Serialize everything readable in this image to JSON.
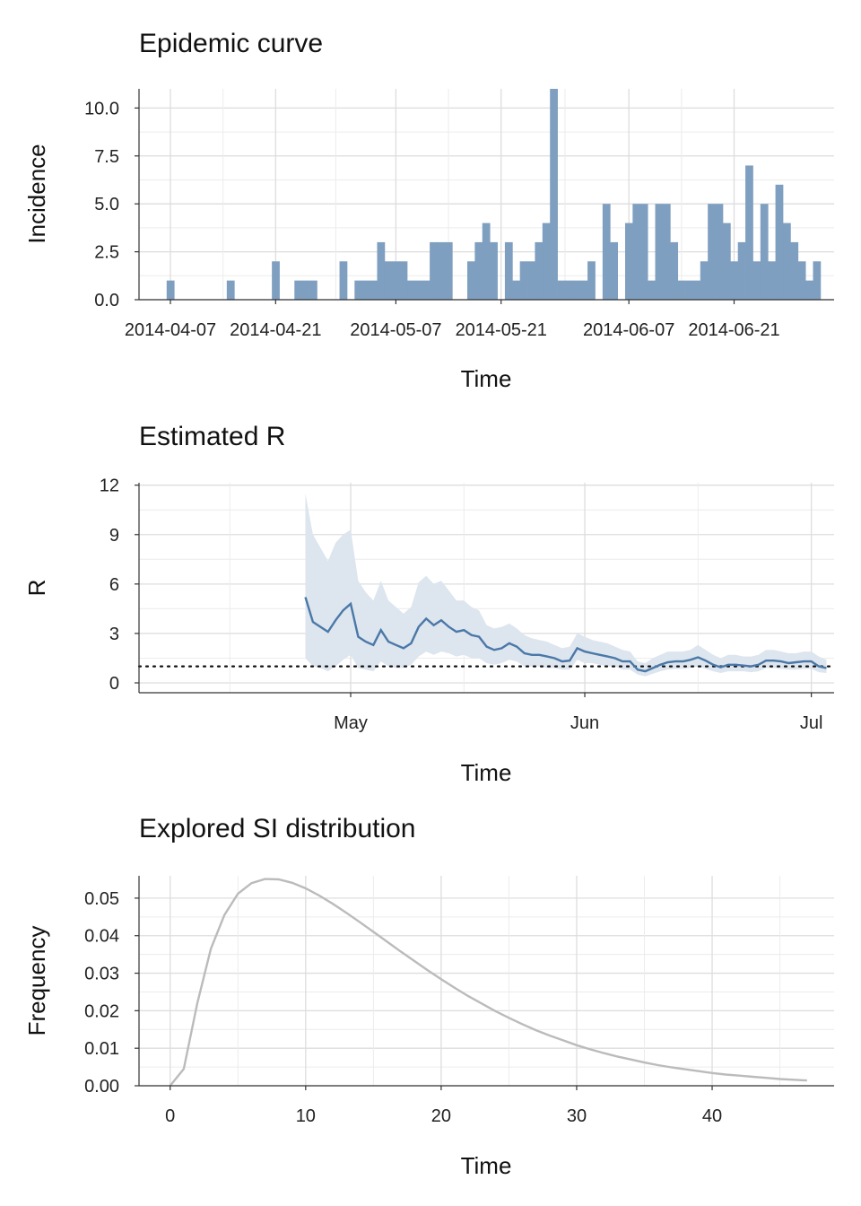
{
  "chart_data": [
    {
      "type": "bar",
      "title": "Epidemic curve",
      "xlabel": "Time",
      "ylabel": "Incidence",
      "ylim": [
        0,
        11
      ],
      "yticks": [
        "0.0",
        "2.5",
        "5.0",
        "7.5",
        "10.0"
      ],
      "xtick_labels": [
        "2014-04-07",
        "2014-04-21",
        "2014-05-07",
        "2014-05-21",
        "2014-06-07",
        "2014-06-21"
      ],
      "bar_color": "#7f9fc0",
      "start_date": "2014-04-07",
      "end_date": "2014-06-30",
      "values": [
        1,
        0,
        0,
        0,
        0,
        0,
        0,
        0,
        1,
        0,
        0,
        0,
        0,
        0,
        2,
        0,
        0,
        1,
        1,
        1,
        0,
        0,
        0,
        2,
        0,
        1,
        1,
        1,
        3,
        2,
        2,
        2,
        1,
        1,
        1,
        3,
        3,
        3,
        0,
        0,
        2,
        3,
        4,
        3,
        0,
        3,
        1,
        2,
        2,
        3,
        4,
        11,
        1,
        1,
        1,
        1,
        2,
        0,
        5,
        3,
        0,
        4,
        5,
        5,
        1,
        5,
        5,
        3,
        1,
        1,
        1,
        2,
        5,
        5,
        4,
        2,
        3,
        7,
        2,
        5,
        2,
        6,
        4,
        3,
        2,
        1,
        2
      ]
    },
    {
      "type": "line",
      "title": "Estimated R",
      "xlabel": "Time",
      "ylabel": "R",
      "ylim": [
        0,
        12
      ],
      "yticks": [
        "0",
        "3",
        "6",
        "9",
        "12"
      ],
      "xtick_labels": [
        "May",
        "Jun",
        "Jul"
      ],
      "line_color": "#4a78a8",
      "band_color": "#dde5ee",
      "reference_line": 1,
      "x": [
        "2014-04-25",
        "2014-04-26",
        "2014-04-27",
        "2014-04-28",
        "2014-04-29",
        "2014-04-30",
        "2014-05-01",
        "2014-05-02",
        "2014-05-03",
        "2014-05-04",
        "2014-05-05",
        "2014-05-06",
        "2014-05-07",
        "2014-05-08",
        "2014-05-09",
        "2014-05-10",
        "2014-05-11",
        "2014-05-12",
        "2014-05-13",
        "2014-05-14",
        "2014-05-15",
        "2014-05-16",
        "2014-05-17",
        "2014-05-18",
        "2014-05-19",
        "2014-05-20",
        "2014-05-21",
        "2014-05-22",
        "2014-05-23",
        "2014-05-24",
        "2014-05-25",
        "2014-05-26",
        "2014-05-27",
        "2014-05-28",
        "2014-05-29",
        "2014-05-30",
        "2014-05-31",
        "2014-06-01",
        "2014-06-02",
        "2014-06-03",
        "2014-06-04",
        "2014-06-05",
        "2014-06-06",
        "2014-06-07",
        "2014-06-08",
        "2014-06-09",
        "2014-06-10",
        "2014-06-11",
        "2014-06-12",
        "2014-06-13",
        "2014-06-14",
        "2014-06-15",
        "2014-06-16",
        "2014-06-17",
        "2014-06-18",
        "2014-06-19",
        "2014-06-20",
        "2014-06-21",
        "2014-06-22",
        "2014-06-23",
        "2014-06-24",
        "2014-06-25",
        "2014-06-26",
        "2014-06-27",
        "2014-06-28",
        "2014-06-29",
        "2014-06-30",
        "2014-07-01",
        "2014-07-02",
        "2014-07-03"
      ],
      "mean": [
        5.2,
        3.7,
        3.4,
        3.1,
        3.8,
        4.4,
        4.8,
        2.8,
        2.5,
        2.3,
        3.2,
        2.5,
        2.3,
        2.1,
        2.4,
        3.4,
        3.9,
        3.5,
        3.8,
        3.4,
        3.1,
        3.2,
        2.9,
        2.8,
        2.2,
        2.0,
        2.1,
        2.4,
        2.2,
        1.8,
        1.7,
        1.7,
        1.6,
        1.5,
        1.3,
        1.35,
        2.1,
        1.9,
        1.8,
        1.7,
        1.6,
        1.5,
        1.3,
        1.3,
        0.8,
        0.7,
        0.9,
        1.1,
        1.25,
        1.3,
        1.3,
        1.4,
        1.55,
        1.35,
        1.1,
        0.95,
        1.1,
        1.1,
        1.05,
        1.0,
        1.1,
        1.35,
        1.35,
        1.3,
        1.2,
        1.25,
        1.3,
        1.3,
        1.0,
        0.9
      ],
      "upper": [
        11.5,
        9.0,
        8.2,
        7.4,
        8.5,
        9.0,
        9.3,
        6.2,
        5.5,
        5.0,
        6.2,
        5.0,
        4.6,
        4.2,
        4.6,
        6.1,
        6.5,
        6.0,
        6.2,
        5.6,
        5.0,
        5.0,
        4.6,
        4.4,
        3.5,
        3.3,
        3.4,
        3.6,
        3.3,
        2.9,
        2.7,
        2.6,
        2.5,
        2.3,
        2.1,
        2.2,
        3.0,
        2.8,
        2.6,
        2.5,
        2.4,
        2.2,
        2.0,
        1.9,
        1.3,
        1.2,
        1.5,
        1.7,
        1.9,
        1.9,
        1.9,
        2.0,
        2.3,
        2.0,
        1.7,
        1.5,
        1.7,
        1.7,
        1.6,
        1.6,
        1.7,
        2.0,
        2.0,
        1.9,
        1.8,
        1.8,
        1.9,
        1.9,
        1.6,
        1.4
      ],
      "lower": [
        1.5,
        1.0,
        0.9,
        0.7,
        1.0,
        1.4,
        1.7,
        0.9,
        0.8,
        0.7,
        1.3,
        1.0,
        0.9,
        0.9,
        1.1,
        1.6,
        1.9,
        1.7,
        1.9,
        1.8,
        1.6,
        1.7,
        1.5,
        1.5,
        1.2,
        1.1,
        1.2,
        1.4,
        1.3,
        1.0,
        1.0,
        1.0,
        0.9,
        0.9,
        0.8,
        0.8,
        1.4,
        1.2,
        1.2,
        1.1,
        1.0,
        1.0,
        0.8,
        0.8,
        0.5,
        0.4,
        0.55,
        0.7,
        0.8,
        0.85,
        0.85,
        0.9,
        1.0,
        0.85,
        0.7,
        0.6,
        0.7,
        0.7,
        0.7,
        0.65,
        0.7,
        0.9,
        0.9,
        0.85,
        0.8,
        0.8,
        0.85,
        0.85,
        0.65,
        0.6
      ]
    },
    {
      "type": "line",
      "title": "Explored SI distribution",
      "xlabel": "Time",
      "ylabel": "Frequency",
      "xlim": [
        -2.3,
        49
      ],
      "ylim": [
        0,
        0.055
      ],
      "xticks": [
        0,
        10,
        20,
        30,
        40
      ],
      "yticks": [
        "0.00",
        "0.01",
        "0.02",
        "0.03",
        "0.04",
        "0.05"
      ],
      "line_color": "#bbbbbb",
      "x": [
        0,
        1,
        2,
        3,
        4,
        5,
        6,
        7,
        8,
        9,
        10,
        11,
        12,
        13,
        14,
        15,
        16,
        17,
        18,
        19,
        20,
        21,
        22,
        23,
        24,
        25,
        26,
        27,
        28,
        29,
        30,
        31,
        32,
        33,
        34,
        35,
        36,
        37,
        38,
        39,
        40,
        41,
        42,
        43,
        44,
        45,
        46,
        47
      ],
      "values": [
        0,
        0.0045,
        0.022,
        0.0365,
        0.0455,
        0.0512,
        0.054,
        0.0551,
        0.055,
        0.0541,
        0.0526,
        0.0507,
        0.0485,
        0.0461,
        0.0436,
        0.041,
        0.0384,
        0.0358,
        0.0333,
        0.0308,
        0.0284,
        0.0261,
        0.0239,
        0.0219,
        0.0199,
        0.0181,
        0.0164,
        0.0148,
        0.0134,
        0.0121,
        0.0108,
        0.0097,
        0.0087,
        0.0078,
        0.007,
        0.0062,
        0.0055,
        0.0049,
        0.0044,
        0.0039,
        0.0034,
        0.003,
        0.0027,
        0.0024,
        0.0021,
        0.0018,
        0.0016,
        0.0014
      ]
    }
  ]
}
